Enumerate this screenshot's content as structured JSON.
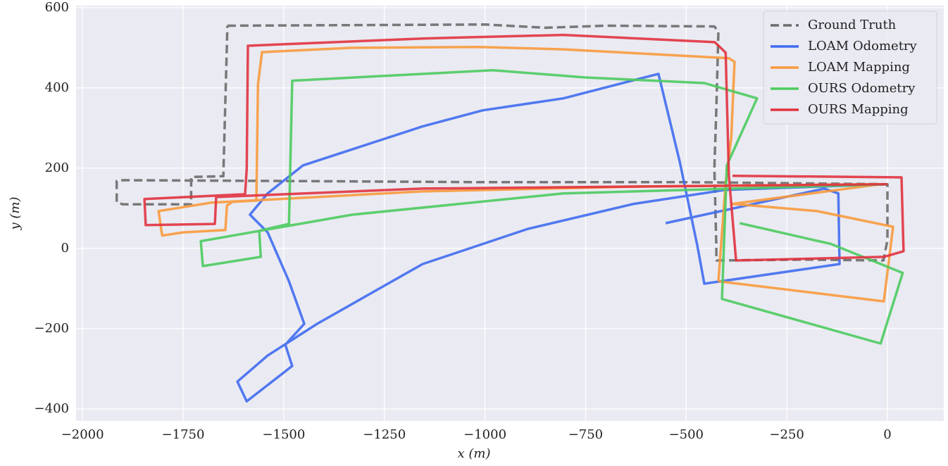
{
  "chart_data": {
    "type": "line",
    "xlabel": "x (m)",
    "ylabel": "y (m)",
    "xlim": [
      -2016,
      140
    ],
    "ylim": [
      -430,
      605
    ],
    "xticks": [
      {
        "value": -2000,
        "label": "−2000"
      },
      {
        "value": -1750,
        "label": "−1750"
      },
      {
        "value": -1500,
        "label": "−1500"
      },
      {
        "value": -1250,
        "label": "−1250"
      },
      {
        "value": -1000,
        "label": "−1000"
      },
      {
        "value": -750,
        "label": "−750"
      },
      {
        "value": -500,
        "label": "−500"
      },
      {
        "value": -250,
        "label": "−250"
      },
      0
    ],
    "yticks": [
      {
        "value": -400,
        "label": "−400"
      },
      {
        "value": -200,
        "label": "−200"
      },
      0,
      200,
      400,
      600
    ],
    "grid": true,
    "legend": "upper right",
    "series": [
      {
        "name": "Ground Truth",
        "color": "#6b6b6b",
        "linestyle": "dashed",
        "x": [
          -1640,
          -1000,
          -850,
          -700,
          -430,
          -420,
          -425,
          -430,
          -425,
          -425,
          -200,
          -10,
          0,
          0,
          -500,
          -1000,
          -1500,
          -1900,
          -1915,
          -1915,
          -1900,
          -1730,
          -1730,
          -1650,
          -1648,
          -1640
        ],
        "y": [
          555,
          558,
          550,
          555,
          553,
          540,
          350,
          200,
          0,
          -30,
          -28,
          -30,
          20,
          160,
          165,
          165,
          168,
          170,
          168,
          115,
          110,
          110,
          178,
          180,
          260,
          555
        ]
      },
      {
        "name": "LOAM Odometry",
        "color": "#3f6bef",
        "linestyle": "solid",
        "x": [
          -551,
          -157,
          -122,
          -119,
          -455,
          -472,
          -516,
          -569,
          -805,
          -1006,
          -1155,
          -1452,
          -1540,
          -1584,
          -1540,
          -1487,
          -1449,
          -1496,
          -1479,
          -1592,
          -1615,
          -1540,
          -1417,
          -1155,
          -892,
          -630,
          -402,
          0
        ],
        "y": [
          63,
          149,
          137,
          -39,
          -88,
          5,
          216,
          435,
          374,
          344,
          304,
          207,
          137,
          84,
          40,
          -82,
          -188,
          -240,
          -293,
          -381,
          -332,
          -267,
          -188,
          -39,
          49,
          111,
          146,
          160
        ]
      },
      {
        "name": "LOAM Mapping",
        "color": "#f89a3c",
        "linestyle": "solid",
        "x": [
          -420,
          -402,
          -388,
          -380,
          -394,
          -805,
          -1015,
          -1330,
          -1554,
          -1564,
          -1568,
          -1627,
          -1641,
          -1645,
          -1750,
          -1802,
          -1811,
          -1680,
          -1155,
          -630,
          -17,
          -385,
          -175,
          14,
          -9,
          -420
        ],
        "y": [
          -82,
          163,
          277,
          465,
          474,
          496,
          502,
          500,
          489,
          409,
          119,
          116,
          107,
          46,
          40,
          32,
          93,
          114,
          142,
          154,
          160,
          111,
          93,
          54,
          -132,
          -82
        ]
      },
      {
        "name": "OURS Odometry",
        "color": "#4ccb5f",
        "linestyle": "solid",
        "x": [
          -367,
          -140,
          38,
          -17,
          -411,
          -399,
          -324,
          -455,
          -752,
          -980,
          -1479,
          -1487,
          -1561,
          -1557,
          -1701,
          -1706,
          -1330,
          -805,
          0
        ],
        "y": [
          63,
          11,
          -61,
          -237,
          -126,
          207,
          374,
          412,
          426,
          444,
          418,
          61,
          44,
          -21,
          -44,
          18,
          84,
          137,
          160
        ]
      },
      {
        "name": "OURS Mapping",
        "color": "#e1333f",
        "linestyle": "solid",
        "x": [
          0,
          -1155,
          -1668,
          -1671,
          -1843,
          -1846,
          -1596,
          -1592,
          -1589,
          -1155,
          -805,
          -429,
          -402,
          -394,
          -376,
          -9,
          40,
          35,
          -385
        ],
        "y": [
          160,
          149,
          128,
          61,
          58,
          123,
          135,
          198,
          505,
          523,
          532,
          514,
          488,
          181,
          -30,
          -21,
          -7,
          177,
          181
        ]
      }
    ]
  }
}
